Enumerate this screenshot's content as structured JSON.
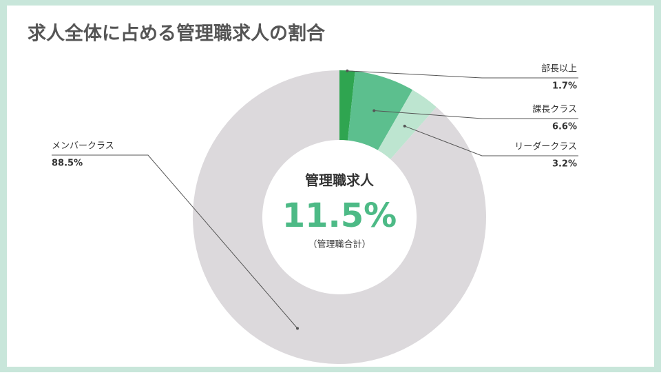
{
  "chart_data": {
    "type": "donut",
    "title": "求人全体に占める管理職求人の割合",
    "categories": [
      "部長以上",
      "課長クラス",
      "リーダークラス",
      "メンバークラス"
    ],
    "values": [
      1.7,
      6.6,
      3.2,
      88.5
    ],
    "value_labels": [
      "1.7%",
      "6.6%",
      "3.2%",
      "88.5%"
    ],
    "colors": [
      "#2fa550",
      "#5cbf8e",
      "#bde5d0",
      "#dcd9dc"
    ],
    "center_title": "管理職求人",
    "center_value": 11.5,
    "center_value_label": "11.5%",
    "center_note": "（管理職合計）",
    "center_value_color": "#4dba86"
  }
}
